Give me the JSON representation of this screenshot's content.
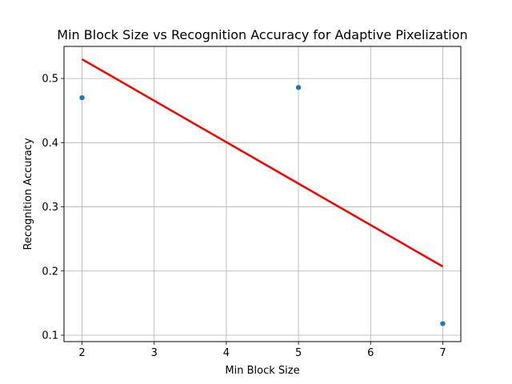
{
  "chart_data": {
    "type": "scatter",
    "title": "Min Block Size vs Recognition Accuracy for Adaptive Pixelization",
    "xlabel": "Min Block Size",
    "ylabel": "Recognition Accuracy",
    "xlim": [
      1.75,
      7.25
    ],
    "ylim": [
      0.09,
      0.55
    ],
    "xticks": [
      2,
      3,
      4,
      5,
      6,
      7
    ],
    "yticks": [
      0.1,
      0.2,
      0.3,
      0.4,
      0.5
    ],
    "grid": true,
    "series": [
      {
        "x": [
          2,
          5,
          7
        ],
        "y": [
          0.47,
          0.486,
          0.118
        ],
        "color": "#1f77b4"
      }
    ],
    "trendline": {
      "x": [
        2,
        7
      ],
      "y": [
        0.53,
        0.207
      ],
      "color": "#ff0000"
    }
  }
}
